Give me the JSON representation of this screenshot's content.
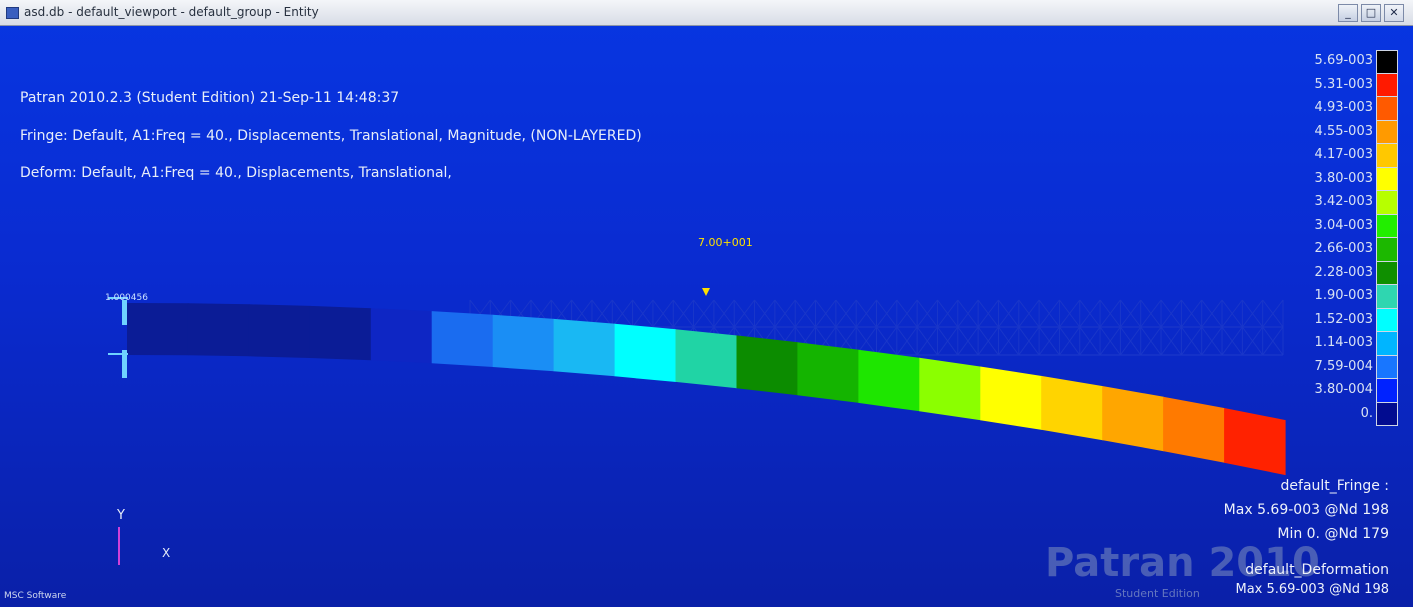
{
  "window": {
    "title": "asd.db - default_viewport - default_group - Entity",
    "buttons": {
      "minimize": "_",
      "maximize": "□",
      "close": "✕"
    }
  },
  "header": {
    "line1": "Patran 2010.2.3 (Student Edition) 21-Sep-11 14:48:37",
    "line2": "Fringe: Default, A1:Freq = 40., Displacements, Translational, Magnitude, (NON-LAYERED)",
    "line3": "Deform: Default, A1:Freq = 40., Displacements, Translational,"
  },
  "annotations": {
    "max_marker": "7.00+001",
    "node_label": "1.000456"
  },
  "legend": {
    "labels": [
      "5.69-003",
      "5.31-003",
      "4.93-003",
      "4.55-003",
      "4.17-003",
      "3.80-003",
      "3.42-003",
      "3.04-003",
      "2.66-003",
      "2.28-003",
      "1.90-003",
      "1.52-003",
      "1.14-003",
      "7.59-004",
      "3.80-004",
      "0."
    ],
    "colors": [
      "#000000",
      "#ff1a00",
      "#ff5a00",
      "#ff9a00",
      "#ffc800",
      "#ffff00",
      "#b7ff00",
      "#22ee00",
      "#1cb800",
      "#0f8f00",
      "#2fd6b0",
      "#00ffff",
      "#00b5ff",
      "#1876ff",
      "#0022ff",
      "#020c90"
    ]
  },
  "footer": {
    "fringe_title": "default_Fringe :",
    "fringe_max": "Max 5.69-003 @Nd 198",
    "fringe_min": "Min 0. @Nd 179",
    "deform_title": "default_Deformation",
    "deform_max": "Max 5.69-003 @Nd 198"
  },
  "watermark": {
    "main": "Patran 2010",
    "sub": "Student Edition"
  },
  "axis": {
    "y": "Y",
    "x": "X"
  },
  "status": "MSC Software",
  "beam": {
    "segment_colors": [
      "#0b1c96",
      "#0b1c96",
      "#0b1c96",
      "#0b1c96",
      "#0e26c4",
      "#1a6cf0",
      "#1a8ef5",
      "#19b8f3",
      "#00ffff",
      "#20d4a5",
      "#0c8c00",
      "#14b400",
      "#1ee600",
      "#8bff00",
      "#ffff00",
      "#ffd400",
      "#ffa600",
      "#ff7a00",
      "#ff2200"
    ]
  },
  "colors": {
    "background": "#0a2bd0",
    "undeformed_mesh": "#1a37c9"
  }
}
